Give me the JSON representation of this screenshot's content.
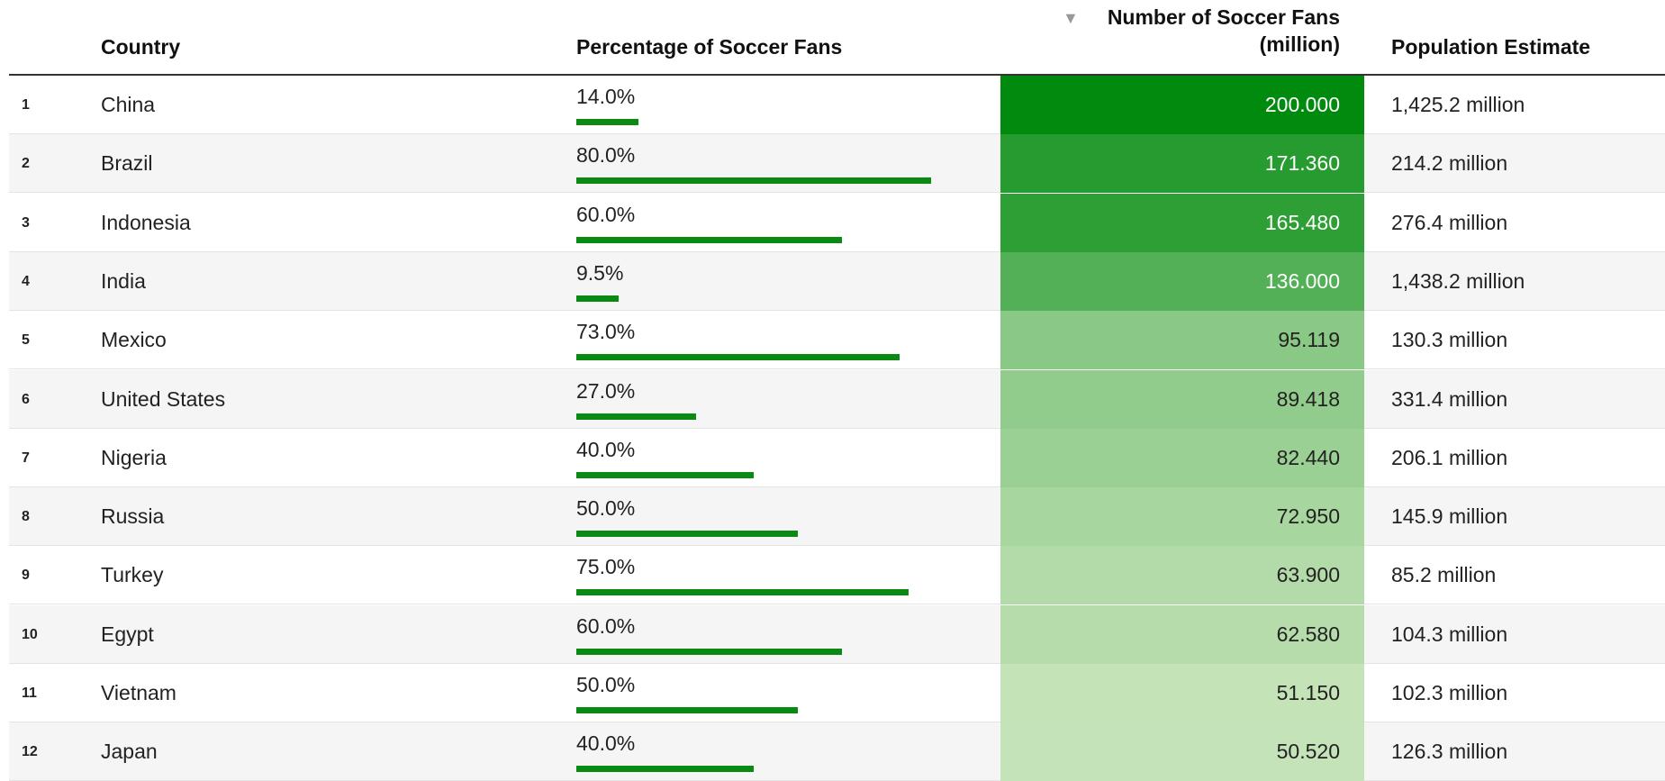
{
  "table": {
    "columns": [
      "Country",
      "Percentage of Soccer Fans",
      "Number of Soccer Fans (million)",
      "Population Estimate"
    ],
    "rows": [
      [
        1,
        "China",
        {
          "value": 14,
          "label": "14.0%"
        },
        {
          "value": 200,
          "label": "200.000"
        },
        "1,425.2 million"
      ],
      [
        2,
        "Brazil",
        {
          "value": 80,
          "label": "80.0%"
        },
        {
          "value": 171.36,
          "label": "171.360"
        },
        "214.2 million"
      ],
      [
        3,
        "Indonesia",
        {
          "value": 60,
          "label": "60.0%"
        },
        {
          "value": 165.48,
          "label": "165.480"
        },
        "276.4 million"
      ],
      [
        4,
        "India",
        {
          "value": 9.5,
          "label": "9.5%"
        },
        {
          "value": 136,
          "label": "136.000"
        },
        "1,438.2 million"
      ],
      [
        5,
        "Mexico",
        {
          "value": 73,
          "label": "73.0%"
        },
        {
          "value": 95.119,
          "label": "95.119"
        },
        "130.3 million"
      ],
      [
        6,
        "United States",
        {
          "value": 27,
          "label": "27.0%"
        },
        {
          "value": 89.418,
          "label": "89.418"
        },
        "331.4 million"
      ],
      [
        7,
        "Nigeria",
        {
          "value": 40,
          "label": "40.0%"
        },
        {
          "value": 82.44,
          "label": "82.440"
        },
        "206.1 million"
      ],
      [
        8,
        "Russia",
        {
          "value": 50,
          "label": "50.0%"
        },
        {
          "value": 72.95,
          "label": "72.950"
        },
        "145.9 million"
      ],
      [
        9,
        "Turkey",
        {
          "value": 75,
          "label": "75.0%"
        },
        {
          "value": 63.9,
          "label": "63.900"
        },
        "85.2 million"
      ],
      [
        10,
        "Egypt",
        {
          "value": 60,
          "label": "60.0%"
        },
        {
          "value": 62.58,
          "label": "62.580"
        },
        "104.3 million"
      ],
      [
        11,
        "Vietnam",
        {
          "value": 50,
          "label": "50.0%"
        },
        {
          "value": 51.15,
          "label": "51.150"
        },
        "102.3 million"
      ],
      [
        12,
        "Japan",
        {
          "value": 40,
          "label": "40.0%"
        },
        {
          "value": 50.52,
          "label": "50.520"
        },
        "126.3 million"
      ]
    ]
  }
}
